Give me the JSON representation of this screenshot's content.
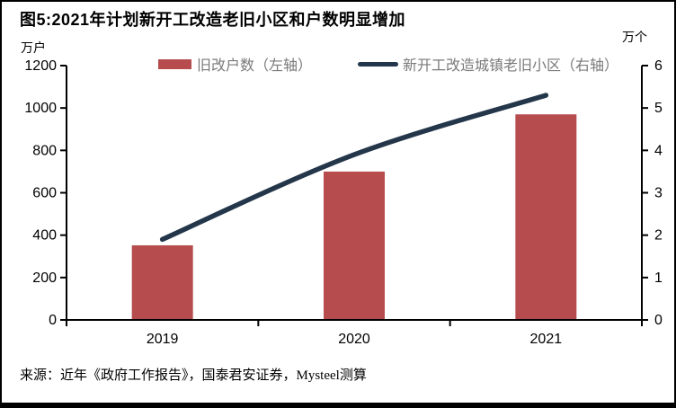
{
  "title": "图5:2021年计划新开工改造老旧小区和户数明显增加",
  "axes": {
    "left_unit": "万户",
    "right_unit": "万个"
  },
  "legend": {
    "items": [
      {
        "label": "旧改户数（左轴）",
        "swatch": "bar"
      },
      {
        "label": "新开工改造城镇老旧小区（右轴）",
        "swatch": "line"
      }
    ]
  },
  "source": "来源：近年《政府工作报告》，国泰君安证券，Mysteel测算",
  "colors": {
    "bar": "#b64c4e",
    "line": "#24364a",
    "axis": "#000000",
    "axis_text": "#000000",
    "legend_text": "#7a7a7a",
    "frame": "#000000",
    "background": "#ffffff"
  },
  "chart_data": {
    "type": "combo",
    "categories": [
      "2019",
      "2020",
      "2021"
    ],
    "series": [
      {
        "name": "旧改户数（左轴）",
        "type": "bar",
        "axis": "left",
        "color": "#b64c4e",
        "values": [
          352,
          700,
          970
        ]
      },
      {
        "name": "新开工改造城镇老旧小区（右轴）",
        "type": "line",
        "axis": "right",
        "color": "#24364a",
        "values": [
          1.9,
          3.9,
          5.3
        ]
      }
    ],
    "title": "图5:2021年计划新开工改造老旧小区和户数明显增加",
    "xlabel": "",
    "ylabel_left": "万户",
    "ylabel_right": "万个",
    "left_ylim": [
      0,
      1200
    ],
    "right_ylim": [
      0,
      6
    ],
    "left_ticks": [
      0,
      200,
      400,
      600,
      800,
      1000,
      1200
    ],
    "right_ticks": [
      0,
      1,
      2,
      3,
      4,
      5,
      6
    ],
    "grid": false,
    "legend_position": "top"
  }
}
